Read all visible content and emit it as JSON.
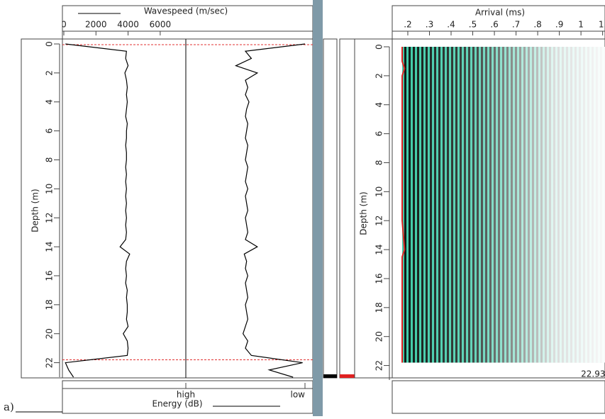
{
  "caption": "a)",
  "chart_data": [
    {
      "type": "line",
      "ylabel": "Depth (m)",
      "depth": [
        0,
        0.5,
        1,
        1.5,
        2,
        2.5,
        3,
        3.5,
        4,
        4.5,
        5,
        5.5,
        6,
        6.5,
        7,
        7.5,
        8,
        8.5,
        9,
        9.5,
        10,
        10.5,
        11,
        11.5,
        12,
        12.5,
        13,
        13.5,
        14,
        14.5,
        15,
        15.5,
        16,
        16.5,
        17,
        17.5,
        18,
        18.5,
        19,
        19.5,
        20,
        20.5,
        21,
        21.5,
        22,
        22.5,
        23
      ],
      "ylim": [
        0,
        23
      ],
      "yticks": [
        0,
        2,
        4,
        6,
        8,
        10,
        12,
        14,
        16,
        18,
        20,
        22
      ],
      "xlim": [
        0,
        15500
      ],
      "xticks": [
        0,
        2000,
        4000,
        6000
      ],
      "x2lim": [
        -0.97,
        1
      ],
      "x2ticks": [
        {
          "value": 0,
          "label": "high"
        },
        {
          "value": 1,
          "label": "low"
        }
      ],
      "series": [
        {
          "name": "Wavespeed (m/sec)",
          "color": "#000000",
          "values": [
            100,
            3900,
            3850,
            4000,
            3800,
            3900,
            3950,
            3900,
            3950,
            3900,
            3850,
            3950,
            3900,
            3900,
            3850,
            3900,
            3900,
            3850,
            3900,
            3850,
            3900,
            3850,
            3900,
            3850,
            3900,
            3850,
            3900,
            3850,
            3500,
            4100,
            3900,
            3850,
            3900,
            3850,
            3950,
            3900,
            3950,
            3950,
            3900,
            4000,
            3700,
            3950,
            4000,
            3950,
            100,
            300,
            600
          ]
        },
        {
          "name": "Energy (dB)",
          "color": "#000000",
          "axis": "x2",
          "values": [
            1.0,
            0.5,
            0.55,
            0.42,
            0.6,
            0.5,
            0.52,
            0.5,
            0.53,
            0.51,
            0.5,
            0.52,
            0.51,
            0.5,
            0.52,
            0.51,
            0.5,
            0.52,
            0.51,
            0.5,
            0.52,
            0.5,
            0.51,
            0.52,
            0.5,
            0.51,
            0.52,
            0.5,
            0.6,
            0.49,
            0.51,
            0.5,
            0.52,
            0.5,
            0.51,
            0.52,
            0.5,
            0.51,
            0.52,
            0.5,
            0.48,
            0.52,
            0.5,
            0.55,
            0.98,
            0.7,
            0.9
          ]
        }
      ],
      "hlines": [
        {
          "value": 0.05,
          "color": "#e03030"
        },
        {
          "value": 21.8,
          "color": "#e03030"
        }
      ]
    },
    {
      "type": "waveform",
      "xlabel": "Arrival (ms)",
      "ylabel": "Depth (m)",
      "xlim": [
        0.128,
        1.111
      ],
      "xticks": [
        {
          "value": 0.2,
          "label": ".2"
        },
        {
          "value": 0.3,
          "label": ".3"
        },
        {
          "value": 0.4,
          "label": ".4"
        },
        {
          "value": 0.5,
          "label": ".5"
        },
        {
          "value": 0.6,
          "label": ".6"
        },
        {
          "value": 0.7,
          "label": ".7"
        },
        {
          "value": 0.8,
          "label": ".8"
        },
        {
          "value": 0.9,
          "label": ".9"
        },
        1,
        {
          "value": 1.1,
          "label": "1."
        }
      ],
      "ylim": [
        0,
        23
      ],
      "yticks": [
        0,
        2,
        4,
        6,
        8,
        10,
        12,
        14,
        16,
        18,
        20,
        22
      ],
      "depth": [
        0,
        1,
        1.5,
        2,
        4,
        6,
        8,
        10,
        12,
        14,
        14.5,
        16,
        18,
        20,
        21.8
      ],
      "series": [
        {
          "color": "#e02020",
          "values": [
            0.174,
            0.174,
            0.185,
            0.174,
            0.174,
            0.174,
            0.174,
            0.174,
            0.174,
            0.185,
            0.174,
            0.174,
            0.174,
            0.174,
            0.174
          ]
        }
      ],
      "annotations": [
        {
          "text": "22.93",
          "x": 1.0,
          "y": 22.6
        }
      ]
    }
  ]
}
